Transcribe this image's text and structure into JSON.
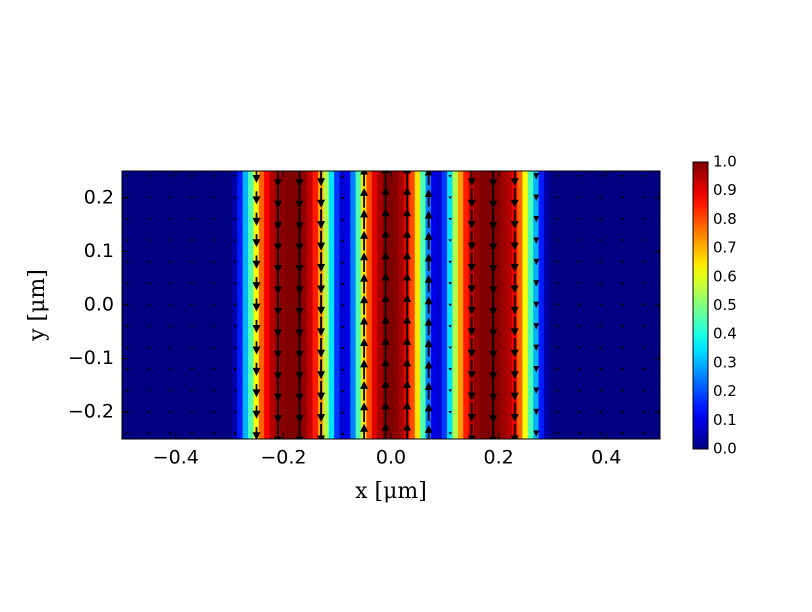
{
  "chart_data": {
    "type": "heatmap",
    "xlabel": "x [μm]",
    "ylabel": "y [μm]",
    "xlim": [
      -0.5,
      0.5
    ],
    "ylim": [
      -0.25,
      0.25
    ],
    "xticks": [
      {
        "value": -0.4,
        "label": "−0.4"
      },
      {
        "value": -0.2,
        "label": "−0.2"
      },
      {
        "value": 0,
        "label": "0.0"
      },
      {
        "value": 0.2,
        "label": "0.2"
      },
      {
        "value": 0.4,
        "label": "0.4"
      }
    ],
    "yticks": [
      {
        "value": -0.2,
        "label": "−0.2"
      },
      {
        "value": -0.1,
        "label": "−0.1"
      },
      {
        "value": 0,
        "label": "0.0"
      },
      {
        "value": 0.1,
        "label": "0.1"
      },
      {
        "value": 0.2,
        "label": "0.2"
      }
    ],
    "colormap": "jet",
    "clim": [
      0,
      1
    ],
    "cticks": [
      {
        "value": 0,
        "label": "0.0"
      },
      {
        "value": 0.1,
        "label": "0.1"
      },
      {
        "value": 0.2,
        "label": "0.2"
      },
      {
        "value": 0.3,
        "label": "0.3"
      },
      {
        "value": 0.4,
        "label": "0.4"
      },
      {
        "value": 0.5,
        "label": "0.5"
      },
      {
        "value": 0.6,
        "label": "0.6"
      },
      {
        "value": 0.7,
        "label": "0.7"
      },
      {
        "value": 0.8,
        "label": "0.8"
      },
      {
        "value": 0.9,
        "label": "0.9"
      },
      {
        "value": 1,
        "label": "1.0"
      }
    ],
    "x": [
      -0.5,
      -0.49,
      -0.48,
      -0.47,
      -0.46,
      -0.45,
      -0.44,
      -0.43,
      -0.42,
      -0.41,
      -0.4,
      -0.39,
      -0.38,
      -0.37,
      -0.36,
      -0.35,
      -0.34,
      -0.33,
      -0.32,
      -0.31,
      -0.3,
      -0.29,
      -0.28,
      -0.27,
      -0.26,
      -0.25,
      -0.24,
      -0.23,
      -0.22,
      -0.21,
      -0.2,
      -0.19,
      -0.18,
      -0.17,
      -0.16,
      -0.15,
      -0.14,
      -0.13,
      -0.12,
      -0.11,
      -0.1,
      -0.09,
      -0.08,
      -0.07,
      -0.06,
      -0.05,
      -0.04,
      -0.03,
      -0.02,
      -0.01,
      0,
      0.01,
      0.02,
      0.03,
      0.04,
      0.05,
      0.06,
      0.07,
      0.08,
      0.09,
      0.1,
      0.11,
      0.12,
      0.13,
      0.14,
      0.15,
      0.16,
      0.17,
      0.18,
      0.19,
      0.2,
      0.21,
      0.22,
      0.23,
      0.24,
      0.25,
      0.26,
      0.27,
      0.28,
      0.29,
      0.3,
      0.31,
      0.32,
      0.33,
      0.34,
      0.35,
      0.36,
      0.37,
      0.38,
      0.39,
      0.4,
      0.41,
      0.42,
      0.43,
      0.44,
      0.45,
      0.46,
      0.47,
      0.48,
      0.49,
      0.5
    ],
    "values": [
      0,
      0,
      0,
      0,
      0,
      0,
      0,
      0,
      0,
      0,
      0,
      0,
      0,
      0,
      0,
      0,
      0,
      0,
      0,
      0,
      0,
      0.04,
      0.15,
      0.3,
      0.45,
      0.62,
      0.78,
      0.88,
      0.95,
      0.97,
      0.99,
      1.0,
      1.0,
      1.0,
      0.98,
      0.93,
      0.85,
      0.72,
      0.55,
      0.35,
      0.18,
      0.08,
      0.1,
      0.25,
      0.45,
      0.65,
      0.8,
      0.9,
      0.96,
      0.99,
      1.0,
      0.99,
      0.96,
      0.9,
      0.8,
      0.65,
      0.45,
      0.25,
      0.1,
      0.08,
      0.18,
      0.35,
      0.55,
      0.72,
      0.85,
      0.93,
      0.98,
      1.0,
      1.0,
      1.0,
      0.99,
      0.97,
      0.95,
      0.88,
      0.78,
      0.62,
      0.45,
      0.3,
      0.15,
      0.04,
      0,
      0,
      0,
      0,
      0,
      0,
      0,
      0,
      0,
      0,
      0,
      0,
      0,
      0,
      0,
      0,
      0,
      0,
      0,
      0,
      0
    ],
    "quiver": {
      "color": "#000000",
      "x": [
        -0.49,
        -0.45,
        -0.41,
        -0.37,
        -0.33,
        -0.29,
        -0.25,
        -0.21,
        -0.17,
        -0.13,
        -0.09,
        -0.05,
        -0.01,
        0.03,
        0.07,
        0.11,
        0.15,
        0.19,
        0.23,
        0.27,
        0.31,
        0.35,
        0.39,
        0.43,
        0.47
      ],
      "y": [
        0.24,
        0.2,
        0.16,
        0.12,
        0.08,
        0.04,
        0,
        -0.04,
        -0.08,
        -0.12,
        -0.16,
        -0.2,
        -0.24
      ],
      "v": [
        0,
        0,
        0,
        0,
        0,
        -0.05,
        -0.6,
        -1,
        -1,
        -0.9,
        0.1,
        0.9,
        1,
        1,
        0.8,
        -0.1,
        -0.9,
        -1,
        -0.9,
        -0.3,
        -0.05,
        0,
        0,
        0,
        0
      ]
    }
  }
}
